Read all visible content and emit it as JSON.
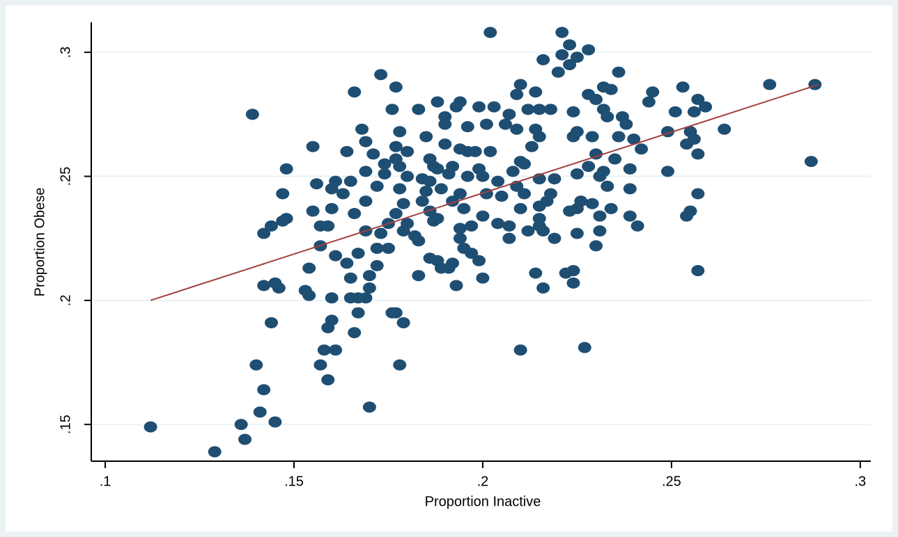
{
  "chart_data": {
    "type": "scatter",
    "x_label": "Proportion Inactive",
    "y_label": "Proportion Obese",
    "xlim": [
      0.0963,
      0.3028
    ],
    "ylim": [
      0.1352,
      0.3121
    ],
    "xticks": [
      {
        "value": 0.1,
        "label": ".1"
      },
      {
        "value": 0.15,
        "label": ".15"
      },
      {
        "value": 0.2,
        "label": ".2"
      },
      {
        "value": 0.25,
        "label": ".25"
      },
      {
        "value": 0.3,
        "label": ".3"
      }
    ],
    "yticks": [
      {
        "value": 0.15,
        "label": ".15"
      },
      {
        "value": 0.2,
        "label": ".2"
      },
      {
        "value": 0.25,
        "label": ".25"
      },
      {
        "value": 0.3,
        "label": ".3"
      }
    ],
    "grid": true,
    "color": "#1f4e73",
    "fit_color": "#a0403f",
    "x": [
      0.112,
      0.129,
      0.136,
      0.137,
      0.141,
      0.142,
      0.145,
      0.14,
      0.139,
      0.142,
      0.142,
      0.145,
      0.146,
      0.144,
      0.144,
      0.147,
      0.148,
      0.147,
      0.148,
      0.153,
      0.154,
      0.154,
      0.155,
      0.155,
      0.156,
      0.157,
      0.157,
      0.157,
      0.158,
      0.159,
      0.159,
      0.159,
      0.16,
      0.16,
      0.16,
      0.161,
      0.161,
      0.16,
      0.161,
      0.163,
      0.164,
      0.164,
      0.165,
      0.165,
      0.165,
      0.166,
      0.166,
      0.166,
      0.167,
      0.167,
      0.167,
      0.168,
      0.169,
      0.169,
      0.169,
      0.169,
      0.169,
      0.17,
      0.17,
      0.17,
      0.171,
      0.172,
      0.172,
      0.172,
      0.173,
      0.173,
      0.174,
      0.174,
      0.175,
      0.175,
      0.176,
      0.176,
      0.177,
      0.177,
      0.177,
      0.178,
      0.178,
      0.177,
      0.177,
      0.178,
      0.178,
      0.179,
      0.179,
      0.179,
      0.18,
      0.18,
      0.18,
      0.182,
      0.183,
      0.183,
      0.184,
      0.183,
      0.184,
      0.185,
      0.185,
      0.186,
      0.186,
      0.186,
      0.186,
      0.187,
      0.187,
      0.188,
      0.188,
      0.188,
      0.188,
      0.189,
      0.189,
      0.19,
      0.19,
      0.19,
      0.191,
      0.191,
      0.192,
      0.192,
      0.192,
      0.193,
      0.193,
      0.194,
      0.194,
      0.194,
      0.194,
      0.194,
      0.195,
      0.195,
      0.196,
      0.196,
      0.196,
      0.197,
      0.197,
      0.198,
      0.199,
      0.199,
      0.199,
      0.2,
      0.2,
      0.2,
      0.201,
      0.201,
      0.202,
      0.202,
      0.203,
      0.204,
      0.204,
      0.205,
      0.206,
      0.207,
      0.207,
      0.207,
      0.208,
      0.209,
      0.209,
      0.209,
      0.21,
      0.21,
      0.21,
      0.21,
      0.211,
      0.211,
      0.212,
      0.212,
      0.213,
      0.214,
      0.214,
      0.214,
      0.215,
      0.215,
      0.215,
      0.215,
      0.215,
      0.215,
      0.216,
      0.216,
      0.216,
      0.217,
      0.218,
      0.218,
      0.219,
      0.219,
      0.22,
      0.221,
      0.221,
      0.222,
      0.223,
      0.223,
      0.223,
      0.224,
      0.224,
      0.224,
      0.224,
      0.225,
      0.225,
      0.225,
      0.225,
      0.225,
      0.226,
      0.227,
      0.228,
      0.228,
      0.228,
      0.229,
      0.229,
      0.23,
      0.23,
      0.23,
      0.231,
      0.231,
      0.231,
      0.232,
      0.232,
      0.232,
      0.233,
      0.233,
      0.234,
      0.234,
      0.235,
      0.236,
      0.236,
      0.237,
      0.238,
      0.239,
      0.239,
      0.239,
      0.24,
      0.241,
      0.242,
      0.244,
      0.245,
      0.249,
      0.249,
      0.251,
      0.253,
      0.254,
      0.255,
      0.255,
      0.254,
      0.256,
      0.256,
      0.257,
      0.257,
      0.257,
      0.257,
      0.259,
      0.264,
      0.276,
      0.287,
      0.288
    ],
    "values": [
      0.149,
      0.139,
      0.15,
      0.144,
      0.155,
      0.164,
      0.151,
      0.174,
      0.275,
      0.227,
      0.206,
      0.207,
      0.205,
      0.191,
      0.23,
      0.232,
      0.233,
      0.243,
      0.253,
      0.204,
      0.202,
      0.213,
      0.262,
      0.236,
      0.247,
      0.23,
      0.174,
      0.222,
      0.18,
      0.189,
      0.168,
      0.23,
      0.237,
      0.201,
      0.192,
      0.218,
      0.18,
      0.245,
      0.248,
      0.243,
      0.26,
      0.215,
      0.209,
      0.201,
      0.248,
      0.284,
      0.187,
      0.235,
      0.219,
      0.201,
      0.195,
      0.269,
      0.201,
      0.252,
      0.264,
      0.24,
      0.228,
      0.21,
      0.205,
      0.157,
      0.259,
      0.214,
      0.246,
      0.221,
      0.227,
      0.291,
      0.251,
      0.255,
      0.221,
      0.231,
      0.277,
      0.195,
      0.262,
      0.235,
      0.195,
      0.254,
      0.268,
      0.286,
      0.257,
      0.245,
      0.174,
      0.239,
      0.228,
      0.191,
      0.26,
      0.231,
      0.25,
      0.226,
      0.277,
      0.21,
      0.249,
      0.224,
      0.24,
      0.244,
      0.266,
      0.257,
      0.236,
      0.217,
      0.248,
      0.232,
      0.254,
      0.28,
      0.253,
      0.216,
      0.233,
      0.213,
      0.245,
      0.274,
      0.271,
      0.263,
      0.213,
      0.251,
      0.254,
      0.24,
      0.215,
      0.278,
      0.206,
      0.28,
      0.229,
      0.225,
      0.243,
      0.261,
      0.221,
      0.237,
      0.27,
      0.25,
      0.26,
      0.23,
      0.219,
      0.26,
      0.278,
      0.253,
      0.216,
      0.209,
      0.234,
      0.25,
      0.271,
      0.243,
      0.308,
      0.26,
      0.278,
      0.231,
      0.248,
      0.242,
      0.271,
      0.23,
      0.225,
      0.275,
      0.252,
      0.283,
      0.246,
      0.269,
      0.18,
      0.256,
      0.287,
      0.237,
      0.243,
      0.255,
      0.277,
      0.228,
      0.262,
      0.269,
      0.211,
      0.284,
      0.23,
      0.266,
      0.277,
      0.238,
      0.249,
      0.233,
      0.228,
      0.205,
      0.297,
      0.24,
      0.243,
      0.277,
      0.249,
      0.225,
      0.292,
      0.308,
      0.299,
      0.211,
      0.303,
      0.295,
      0.236,
      0.266,
      0.207,
      0.212,
      0.276,
      0.298,
      0.227,
      0.251,
      0.237,
      0.268,
      0.24,
      0.181,
      0.301,
      0.254,
      0.283,
      0.266,
      0.239,
      0.281,
      0.259,
      0.222,
      0.234,
      0.228,
      0.25,
      0.277,
      0.252,
      0.286,
      0.246,
      0.274,
      0.285,
      0.237,
      0.257,
      0.266,
      0.292,
      0.274,
      0.271,
      0.234,
      0.245,
      0.253,
      0.265,
      0.23,
      0.261,
      0.28,
      0.284,
      0.252,
      0.268,
      0.276,
      0.286,
      0.234,
      0.268,
      0.236,
      0.263,
      0.265,
      0.276,
      0.259,
      0.243,
      0.212,
      0.281,
      0.278,
      0.269,
      0.287,
      0.256,
      0.287
    ],
    "fit_line": {
      "x": [
        0.112,
        0.289
      ],
      "values": [
        0.2,
        0.287
      ]
    }
  }
}
